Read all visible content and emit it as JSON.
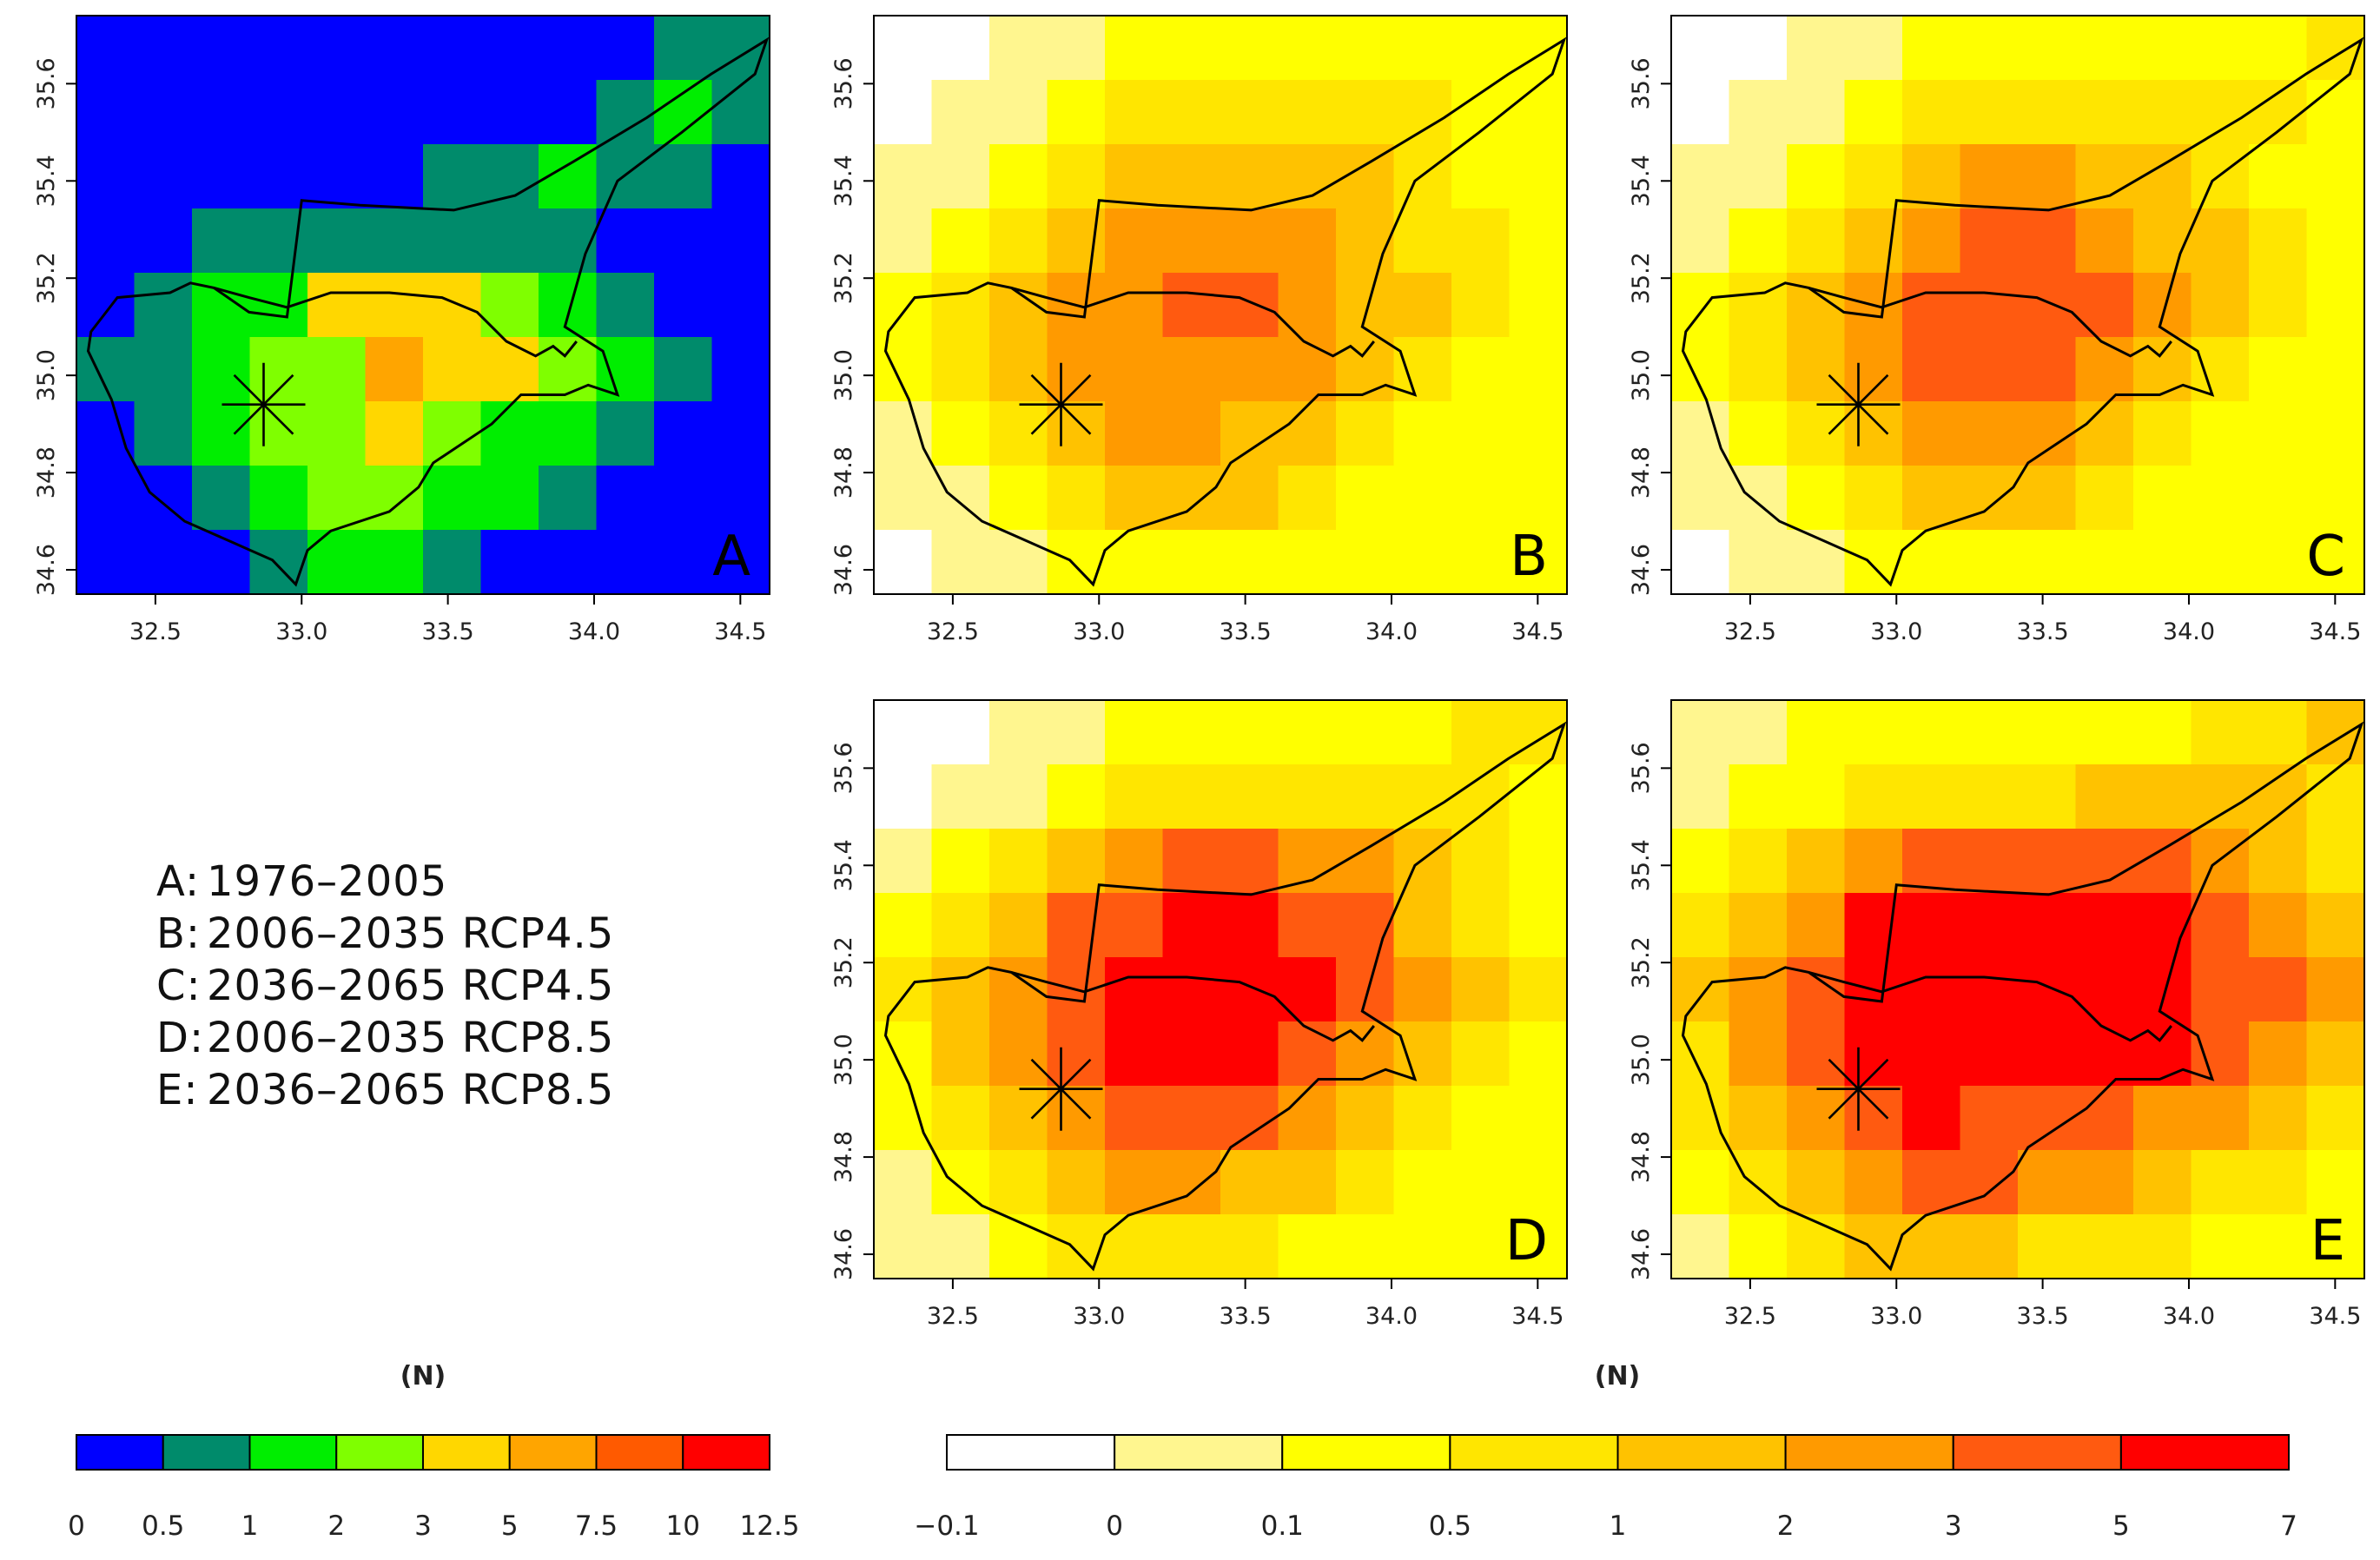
{
  "panels": [
    {
      "letter": "A",
      "period": "1976–2005",
      "scenario": "",
      "scale": "baseline"
    },
    {
      "letter": "B",
      "period": "2006–2035",
      "scenario": "RCP4.5",
      "scale": "change"
    },
    {
      "letter": "C",
      "period": "2036–2065",
      "scenario": "RCP4.5",
      "scale": "change"
    },
    {
      "letter": "D",
      "period": "2006–2035",
      "scenario": "RCP8.5",
      "scale": "change"
    },
    {
      "letter": "E",
      "period": "2036–2065",
      "scenario": "RCP8.5",
      "scale": "change"
    }
  ],
  "legend_lines": [
    {
      "key": "A:",
      "value": "1976–2005"
    },
    {
      "key": "B:",
      "value": "2006–2035 RCP4.5"
    },
    {
      "key": "C:",
      "value": "2036–2065 RCP4.5"
    },
    {
      "key": "D:",
      "value": "2006–2035 RCP8.5"
    },
    {
      "key": "E:",
      "value": "2036–2065 RCP8.5"
    }
  ],
  "map_axes": {
    "x_ticks": [
      "32.5",
      "33.0",
      "33.5",
      "34.0",
      "34.5"
    ],
    "y_ticks": [
      "34.6",
      "34.8",
      "35.0",
      "35.2",
      "35.4",
      "35.6"
    ],
    "xlim": [
      32.23,
      34.6
    ],
    "ylim": [
      34.55,
      35.74
    ]
  },
  "station_marker": {
    "lon": 32.87,
    "lat": 34.94,
    "symbol": "asterisk"
  },
  "colorbars": [
    {
      "id": "baseline",
      "unit_label": "(N)",
      "breaks": [
        "0",
        "0.5",
        "1",
        "2",
        "3",
        "5",
        "7.5",
        "10",
        "12.5"
      ],
      "colors": [
        "#0000ff",
        "#008b6b",
        "#00ee00",
        "#7fff00",
        "#ffd700",
        "#ffa500",
        "#ff5a00",
        "#ff0000"
      ]
    },
    {
      "id": "change",
      "unit_label": "(N)",
      "breaks": [
        "−0.1",
        "0",
        "0.1",
        "0.5",
        "1",
        "2",
        "3",
        "5",
        "7"
      ],
      "colors": [
        "#ffffff",
        "#fff68f",
        "#ffff00",
        "#ffe600",
        "#ffc200",
        "#ff9a00",
        "#ff5a10",
        "#ff0000"
      ]
    }
  ]
}
